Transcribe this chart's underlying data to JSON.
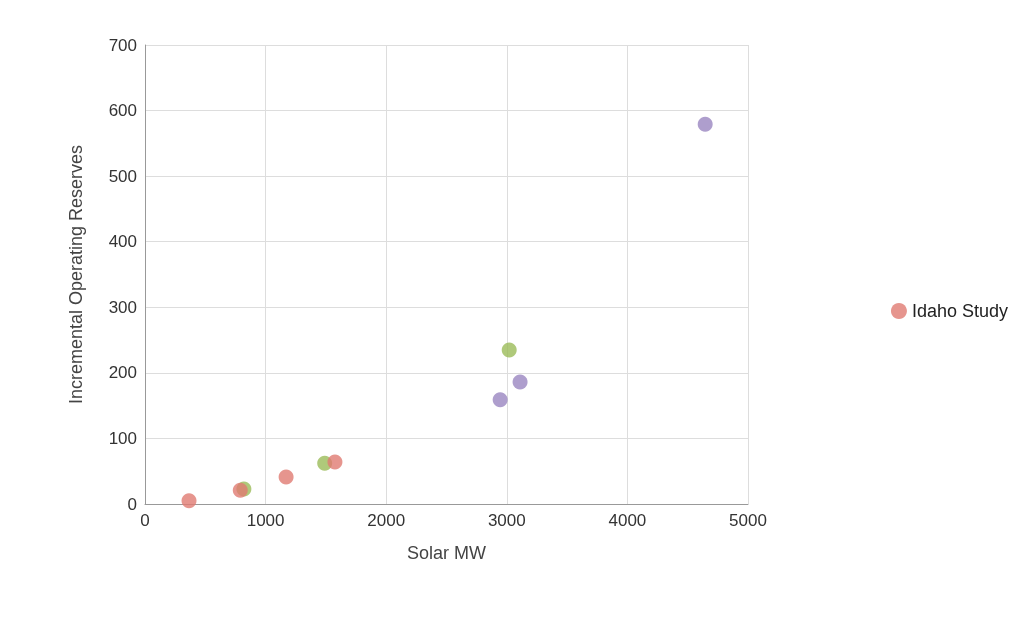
{
  "chart_data": {
    "type": "scatter",
    "xlabel": "Solar MW",
    "ylabel": "Incremental Operating Reserves",
    "xlim": [
      0,
      5000
    ],
    "xticks": [
      0,
      1000,
      2000,
      3000,
      4000,
      5000
    ],
    "ylim": [
      0,
      700
    ],
    "yticks": [
      0,
      100,
      200,
      300,
      400,
      500,
      600,
      700
    ],
    "grid": true,
    "legend": "right",
    "marker": "circle",
    "series": [
      {
        "name": "Idaho Study",
        "color": "#e07b72",
        "x": [
          365,
          790,
          1170,
          1575
        ],
        "values": [
          5,
          21,
          41,
          64
        ]
      },
      {
        "color": "#9bbb59",
        "x": [
          820,
          1490,
          3020
        ],
        "values": [
          23,
          62,
          235
        ]
      },
      {
        "color": "#9a86c0",
        "x": [
          2945,
          3110,
          4645
        ],
        "values": [
          159,
          186,
          579
        ]
      }
    ]
  }
}
